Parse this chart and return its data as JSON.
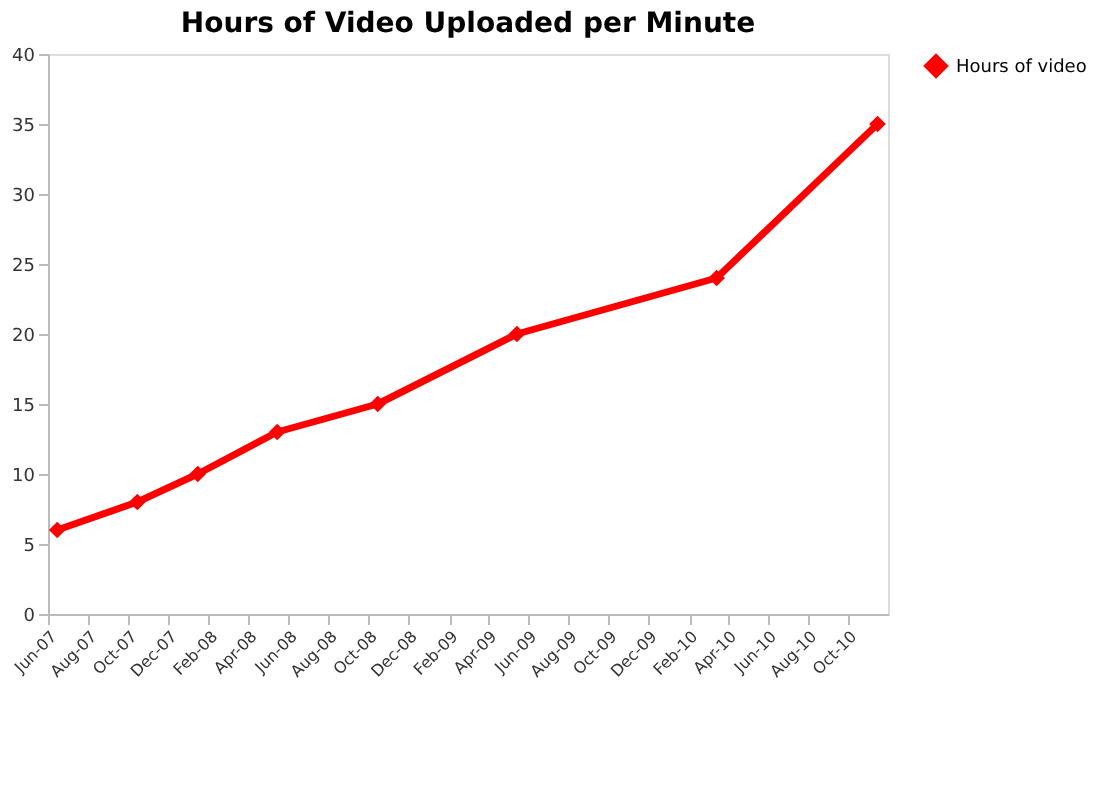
{
  "chart_data": {
    "type": "line",
    "title": "Hours of Video Uploaded per Minute",
    "x": [
      "2007-06-15",
      "2007-10-15",
      "2008-01-15",
      "2008-05-15",
      "2008-10-15",
      "2009-05-15",
      "2010-03-15",
      "2010-11-15"
    ],
    "series": [
      {
        "name": "Hours of video",
        "color": "#ff0000",
        "values": [
          6,
          8,
          10,
          13,
          15,
          20,
          24,
          35
        ]
      }
    ],
    "xlim": [
      "2007-06-01",
      "2010-12-01"
    ],
    "xticks": [
      {
        "value": "2007-06-01",
        "label": "Jun-07"
      },
      {
        "value": "2007-08-01",
        "label": "Aug-07"
      },
      {
        "value": "2007-10-01",
        "label": "Oct-07"
      },
      {
        "value": "2007-12-01",
        "label": "Dec-07"
      },
      {
        "value": "2008-02-01",
        "label": "Feb-08"
      },
      {
        "value": "2008-04-01",
        "label": "Apr-08"
      },
      {
        "value": "2008-06-01",
        "label": "Jun-08"
      },
      {
        "value": "2008-08-01",
        "label": "Aug-08"
      },
      {
        "value": "2008-10-01",
        "label": "Oct-08"
      },
      {
        "value": "2008-12-01",
        "label": "Dec-08"
      },
      {
        "value": "2009-02-01",
        "label": "Feb-09"
      },
      {
        "value": "2009-04-01",
        "label": "Apr-09"
      },
      {
        "value": "2009-06-01",
        "label": "Jun-09"
      },
      {
        "value": "2009-08-01",
        "label": "Aug-09"
      },
      {
        "value": "2009-10-01",
        "label": "Oct-09"
      },
      {
        "value": "2009-12-01",
        "label": "Dec-09"
      },
      {
        "value": "2010-02-01",
        "label": "Feb-10"
      },
      {
        "value": "2010-04-01",
        "label": "Apr-10"
      },
      {
        "value": "2010-06-01",
        "label": "Jun-10"
      },
      {
        "value": "2010-08-01",
        "label": "Aug-10"
      },
      {
        "value": "2010-10-01",
        "label": "Oct-10"
      }
    ],
    "ylim": [
      0,
      40
    ],
    "yticks": [
      0,
      5,
      10,
      15,
      20,
      25,
      30,
      35,
      40
    ],
    "grid": false,
    "legend": "right",
    "marker": "diamond",
    "line_style": "solid"
  }
}
